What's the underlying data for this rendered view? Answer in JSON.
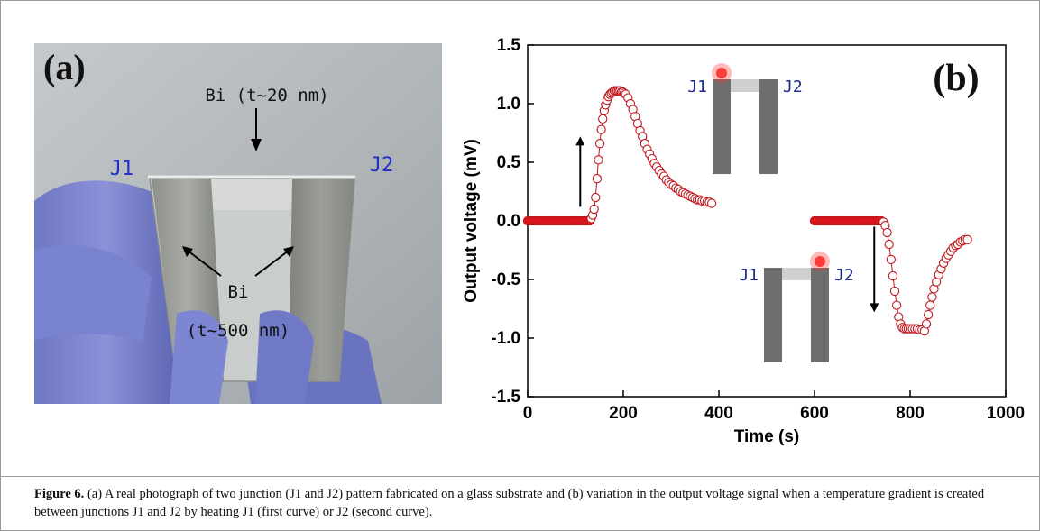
{
  "panel_a": {
    "label": "(a)",
    "top_film": "Bi (t~20 nm)",
    "thick_film_line1": "Bi",
    "thick_film_line2": "(t~500 nm)",
    "junction_left": "J1",
    "junction_right": "J2"
  },
  "panel_b_label": "(b)",
  "inset_top": {
    "left": "J1",
    "right": "J2"
  },
  "inset_bottom": {
    "left": "J1",
    "right": "J2"
  },
  "caption": {
    "figure_label": "Figure 6.",
    "text": " (a) A real photograph of two junction (J1 and J2) pattern fabricated on a glass substrate and (b) variation in the output voltage signal when a temperature gradient is created between junctions J1 and J2 by heating J1 (first curve) or J2 (second curve)."
  },
  "colors": {
    "marker_fill": "#e8141a",
    "marker_edge": "#c0171c",
    "line": "#c0171c",
    "heat_spot": "#ff3a3a"
  },
  "chart_data": {
    "type": "scatter",
    "xlabel": "Time (s)",
    "ylabel": "Output voltage (mV)",
    "xlim": [
      0,
      1000
    ],
    "ylim": [
      -1.5,
      1.5
    ],
    "xticks": [
      0,
      200,
      400,
      600,
      800,
      1000
    ],
    "yticks": [
      -1.5,
      -1.0,
      -0.5,
      0.0,
      0.5,
      1.0,
      1.5
    ],
    "grid": false,
    "series": [
      {
        "x": [
          0,
          5,
          10,
          15,
          20,
          25,
          30,
          35,
          40,
          45,
          50,
          55,
          60,
          65,
          70,
          75,
          80,
          85,
          90,
          95,
          100,
          105,
          110,
          115,
          120,
          125,
          130,
          133,
          136,
          139,
          142,
          145,
          148,
          151,
          154,
          157,
          160,
          163,
          166,
          169,
          172,
          175,
          178,
          181,
          184,
          187,
          190,
          193,
          196,
          199,
          202,
          205,
          210,
          215,
          220,
          225,
          230,
          235,
          240,
          245,
          250,
          255,
          260,
          265,
          270,
          275,
          280,
          285,
          290,
          295,
          300,
          305,
          310,
          315,
          320,
          325,
          330,
          335,
          340,
          345,
          350,
          355,
          360,
          365,
          370,
          375,
          380,
          385
        ],
        "y": [
          0,
          0,
          0,
          0,
          0,
          0,
          0,
          0,
          0,
          0,
          0,
          0,
          0,
          0,
          0,
          0,
          0,
          0,
          0,
          0,
          0,
          0,
          0,
          0,
          0,
          0,
          0,
          0.02,
          0.05,
          0.1,
          0.2,
          0.36,
          0.52,
          0.66,
          0.78,
          0.87,
          0.94,
          0.99,
          1.03,
          1.06,
          1.08,
          1.09,
          1.1,
          1.11,
          1.11,
          1.11,
          1.11,
          1.11,
          1.1,
          1.1,
          1.09,
          1.08,
          1.05,
          1.0,
          0.95,
          0.89,
          0.83,
          0.77,
          0.72,
          0.66,
          0.61,
          0.57,
          0.53,
          0.49,
          0.46,
          0.43,
          0.4,
          0.38,
          0.35,
          0.33,
          0.31,
          0.3,
          0.28,
          0.27,
          0.25,
          0.24,
          0.23,
          0.22,
          0.21,
          0.2,
          0.19,
          0.18,
          0.18,
          0.17,
          0.17,
          0.16,
          0.16,
          0.15
        ]
      },
      {
        "x": [
          600,
          605,
          610,
          615,
          620,
          625,
          630,
          635,
          640,
          645,
          650,
          655,
          660,
          665,
          670,
          675,
          680,
          685,
          690,
          695,
          700,
          705,
          710,
          715,
          720,
          725,
          730,
          735,
          740,
          744,
          748,
          752,
          756,
          760,
          764,
          768,
          772,
          776,
          780,
          784,
          788,
          792,
          796,
          800,
          805,
          810,
          815,
          820,
          825,
          830,
          834,
          838,
          842,
          846,
          850,
          855,
          860,
          865,
          870,
          875,
          880,
          885,
          890,
          895,
          900,
          905,
          910,
          915,
          920
        ],
        "y": [
          0,
          0,
          0,
          0,
          0,
          0,
          0,
          0,
          0,
          0,
          0,
          0,
          0,
          0,
          0,
          0,
          0,
          0,
          0,
          0,
          0,
          0,
          0,
          0,
          0,
          0,
          0,
          0,
          0,
          -0.01,
          -0.04,
          -0.1,
          -0.2,
          -0.33,
          -0.47,
          -0.6,
          -0.72,
          -0.82,
          -0.88,
          -0.91,
          -0.92,
          -0.92,
          -0.92,
          -0.92,
          -0.92,
          -0.92,
          -0.92,
          -0.93,
          -0.93,
          -0.94,
          -0.88,
          -0.8,
          -0.72,
          -0.65,
          -0.58,
          -0.52,
          -0.46,
          -0.41,
          -0.36,
          -0.32,
          -0.29,
          -0.26,
          -0.23,
          -0.21,
          -0.2,
          -0.18,
          -0.17,
          -0.16,
          -0.16
        ]
      }
    ],
    "annotations": [
      "up-arrow",
      "down-arrow",
      "J1-heated inset",
      "J2-heated inset"
    ]
  }
}
